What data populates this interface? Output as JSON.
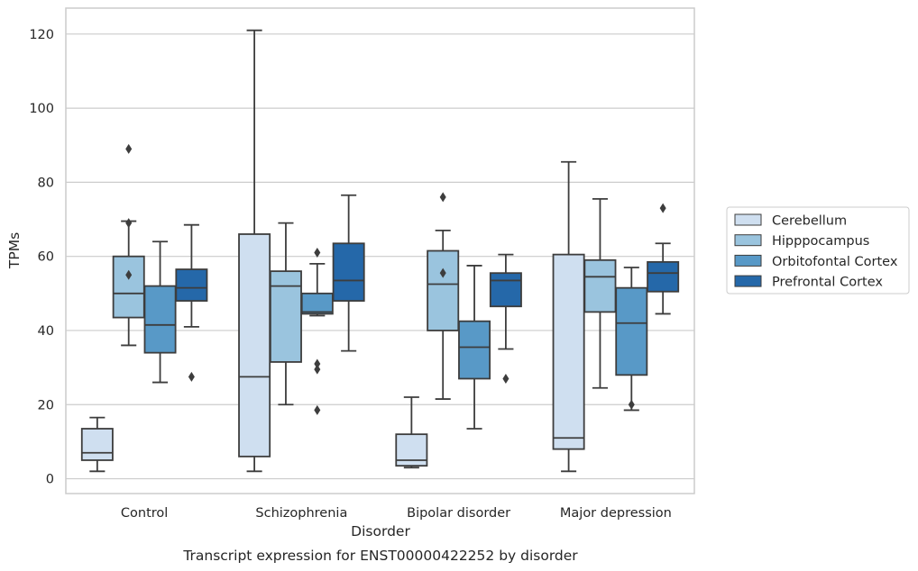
{
  "chart_data": {
    "type": "box",
    "xlabel": "Disorder",
    "ylabel": "TPMs",
    "caption": "Transcript expression for ENST00000422252 by disorder",
    "categories": [
      "Control",
      "Schizophrenia",
      "Bipolar disorder",
      "Major depression"
    ],
    "ylim": [
      -4,
      127
    ],
    "yticks": [
      0,
      20,
      40,
      60,
      80,
      100,
      120
    ],
    "grid": "horizontal",
    "legend_position": "right",
    "series": [
      {
        "name": "Cerebellum",
        "color": "#cfdff0",
        "boxes": [
          {
            "whislo": 2,
            "q1": 5,
            "med": 7,
            "q3": 13.5,
            "whishi": 16.5,
            "fliers": []
          },
          {
            "whislo": 2,
            "q1": 6,
            "med": 27.5,
            "q3": 66,
            "whishi": 121,
            "fliers": []
          },
          {
            "whislo": 3,
            "q1": 3.5,
            "med": 5,
            "q3": 12,
            "whishi": 22,
            "fliers": []
          },
          {
            "whislo": 2,
            "q1": 8,
            "med": 11,
            "q3": 60.5,
            "whishi": 85.5,
            "fliers": []
          }
        ]
      },
      {
        "name": "Hipppocampus",
        "color": "#9ac4de",
        "boxes": [
          {
            "whislo": 36,
            "q1": 43.5,
            "med": 50,
            "q3": 60,
            "whishi": 69.5,
            "fliers": [
              55,
              69,
              89
            ]
          },
          {
            "whislo": 20,
            "q1": 31.5,
            "med": 52,
            "q3": 56,
            "whishi": 69,
            "fliers": []
          },
          {
            "whislo": 21.5,
            "q1": 40,
            "med": 52.5,
            "q3": 61.5,
            "whishi": 67,
            "fliers": [
              55.5,
              76
            ]
          },
          {
            "whislo": 24.5,
            "q1": 45,
            "med": 54.5,
            "q3": 59,
            "whishi": 75.5,
            "fliers": []
          }
        ]
      },
      {
        "name": "Orbitofontal Cortex",
        "color": "#5899c7",
        "boxes": [
          {
            "whislo": 26,
            "q1": 34,
            "med": 41.5,
            "q3": 52,
            "whishi": 64,
            "fliers": []
          },
          {
            "whislo": 44,
            "q1": 44.5,
            "med": 45,
            "q3": 50,
            "whishi": 58,
            "fliers": [
              18.5,
              29.5,
              31,
              61
            ]
          },
          {
            "whislo": 13.5,
            "q1": 27,
            "med": 35.5,
            "q3": 42.5,
            "whishi": 57.5,
            "fliers": []
          },
          {
            "whislo": 18.5,
            "q1": 28,
            "med": 42,
            "q3": 51.5,
            "whishi": 57,
            "fliers": [
              20
            ]
          }
        ]
      },
      {
        "name": "Prefrontal Cortex",
        "color": "#2568a9",
        "boxes": [
          {
            "whislo": 41,
            "q1": 48,
            "med": 51.5,
            "q3": 56.5,
            "whishi": 68.5,
            "fliers": [
              27.5
            ]
          },
          {
            "whislo": 34.5,
            "q1": 48,
            "med": 53.5,
            "q3": 63.5,
            "whishi": 76.5,
            "fliers": []
          },
          {
            "whislo": 35,
            "q1": 46.5,
            "med": 53.5,
            "q3": 55.5,
            "whishi": 60.5,
            "fliers": [
              27
            ]
          },
          {
            "whislo": 44.5,
            "q1": 50.5,
            "med": 55.5,
            "q3": 58.5,
            "whishi": 63.5,
            "fliers": [
              73
            ]
          }
        ]
      }
    ]
  }
}
